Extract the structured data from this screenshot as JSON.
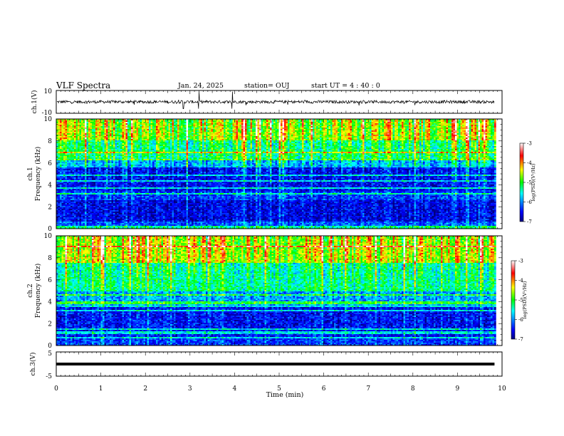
{
  "header": {
    "title": "VLF Spectra",
    "date": "Jan. 24, 2025",
    "station": "station= OUJ",
    "start": "start  UT =   4 : 40 : 0"
  },
  "chart_data": [
    {
      "type": "line",
      "ylabel": "ch.1(V)",
      "ylim": [
        -10,
        10
      ],
      "y_ticks": [
        "10",
        "-10"
      ],
      "baseline": 0,
      "note_spikes_min": [
        2.85,
        3.2,
        3.95
      ]
    },
    {
      "type": "heatmap",
      "ylabel_top": "ch.1",
      "ylabel": "Frequency (kHz)",
      "ylim": [
        0,
        10
      ],
      "y_ticks": [
        "0",
        "2",
        "4",
        "6",
        "8",
        "10"
      ],
      "colorbar": {
        "label": "log(PSD)(V²/Hz)",
        "ticks": [
          "-3",
          "-4",
          "-5",
          "-6",
          "-7"
        ],
        "range": [
          -7,
          -3
        ]
      },
      "band_levels": [
        {
          "f": [
            0,
            0.6
          ],
          "v": -6.2
        },
        {
          "f": [
            0.6,
            2.6
          ],
          "v": -6.6
        },
        {
          "f": [
            2.6,
            3.4
          ],
          "v": -6.3
        },
        {
          "f": [
            3.4,
            5.6
          ],
          "v": -6.5
        },
        {
          "f": [
            5.6,
            6.4
          ],
          "v": -5.8
        },
        {
          "f": [
            6.4,
            8.0
          ],
          "v": -5.2
        },
        {
          "f": [
            8.0,
            10.0
          ],
          "v": -4.6
        }
      ]
    },
    {
      "type": "heatmap",
      "ylabel_top": "ch.2",
      "ylabel": "Frequency (kHz)",
      "ylim": [
        0,
        10
      ],
      "y_ticks": [
        "0",
        "2",
        "4",
        "6",
        "8",
        "10"
      ],
      "colorbar": {
        "label": "log(PSD)(V²/Hz)",
        "ticks": [
          "-3",
          "-4",
          "-5",
          "-6",
          "-7"
        ],
        "range": [
          -7,
          -3
        ]
      },
      "band_levels": [
        {
          "f": [
            0,
            0.6
          ],
          "v": -6.3
        },
        {
          "f": [
            0.6,
            3.6
          ],
          "v": -6.5
        },
        {
          "f": [
            3.6,
            5.0
          ],
          "v": -5.9
        },
        {
          "f": [
            5.0,
            7.5
          ],
          "v": -5.3
        },
        {
          "f": [
            7.5,
            10.0
          ],
          "v": -4.5
        }
      ]
    },
    {
      "type": "line",
      "ylabel": "ch.3(V)",
      "ylim": [
        -5,
        5
      ],
      "y_ticks": [
        "5",
        "-5"
      ],
      "baseline": 0
    }
  ],
  "x_axis": {
    "label": "Time (min)",
    "xlim": [
      0,
      10
    ],
    "ticks": [
      "0",
      "1",
      "2",
      "3",
      "4",
      "5",
      "6",
      "7",
      "8",
      "9",
      "10"
    ],
    "data_end": 9.83
  }
}
